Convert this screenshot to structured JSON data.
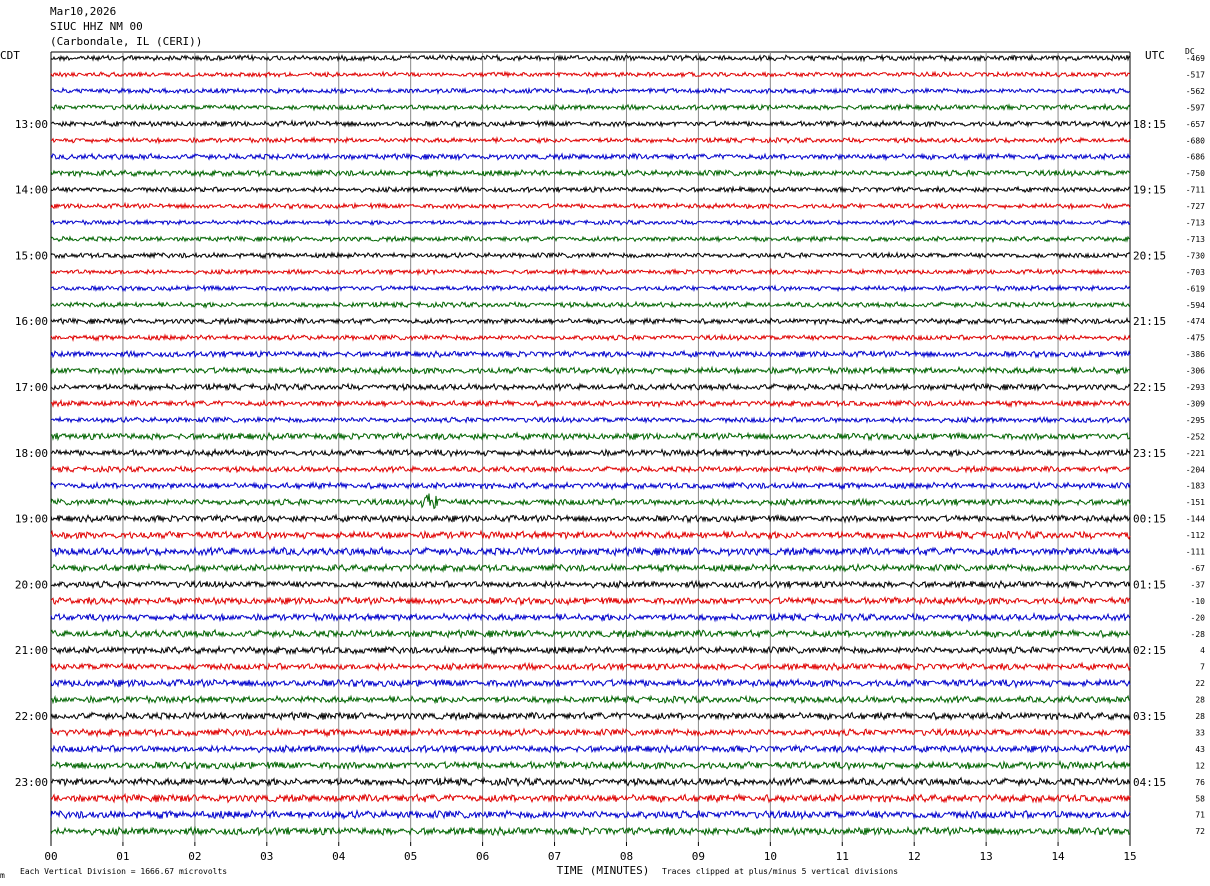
{
  "header": {
    "date": "Mar10,2026",
    "station": "SIUC HHZ NM 00",
    "location": "(Carbondale, IL (CERI))"
  },
  "labels": {
    "left_tz": "CDT",
    "right_tz": "UTC",
    "dc": "DC"
  },
  "footer": {
    "scale_note": "Each Vertical Division = 1666.67 microvolts",
    "clip_note": "Traces clipped at plus/minus 5 vertical divisions",
    "corner_mark": "m"
  },
  "colors": {
    "trace_cycle": [
      "#000000",
      "#e00000",
      "#0000cc",
      "#006400"
    ],
    "grid": "#888888"
  },
  "chart_data": {
    "type": "line",
    "title": "",
    "xlabel": "TIME (MINUTES)",
    "x_ticks": [
      "00",
      "01",
      "02",
      "03",
      "04",
      "05",
      "06",
      "07",
      "08",
      "09",
      "10",
      "11",
      "12",
      "13",
      "14",
      "15"
    ],
    "xlim": [
      0,
      15
    ],
    "trace_count": 48,
    "local_hour_labels": [
      "13:00",
      "14:00",
      "15:00",
      "16:00",
      "17:00",
      "18:00",
      "19:00",
      "20:00",
      "21:00",
      "22:00",
      "23:00"
    ],
    "utc_hour_labels": [
      "18:15",
      "19:15",
      "20:15",
      "21:15",
      "22:15",
      "23:15",
      "00:15",
      "01:15",
      "02:15",
      "03:15",
      "04:15"
    ],
    "dc_offsets": [
      -469,
      -517,
      -562,
      -597,
      -657,
      -680,
      -686,
      -750,
      -711,
      -727,
      -713,
      -713,
      -730,
      -703,
      -619,
      -594,
      -474,
      -475,
      -386,
      -306,
      -293,
      -309,
      -295,
      -252,
      -221,
      -204,
      -183,
      -151,
      -144,
      -112,
      -111,
      -67,
      -37,
      -10,
      -20,
      -28,
      4,
      7,
      22,
      28,
      28,
      33,
      43,
      12,
      76,
      58,
      71,
      72
    ],
    "noise_levels": [
      2.2,
      1.9,
      2.0,
      2.1,
      2.2,
      2.0,
      2.3,
      2.4,
      2.1,
      2.0,
      1.8,
      2.0,
      2.1,
      1.9,
      2.0,
      2.1,
      2.2,
      2.1,
      2.4,
      2.6,
      2.5,
      2.3,
      2.2,
      2.7,
      2.6,
      2.3,
      2.5,
      2.6,
      2.7,
      3.0,
      3.2,
      2.8,
      2.7,
      2.9,
      2.8,
      2.9,
      2.8,
      2.7,
      3.0,
      2.7,
      2.9,
      2.8,
      2.8,
      3.0,
      3.0,
      3.1,
      3.2,
      3.1
    ],
    "events": [
      {
        "trace": 27,
        "minute": 5.28,
        "amplitude": 9
      }
    ]
  }
}
